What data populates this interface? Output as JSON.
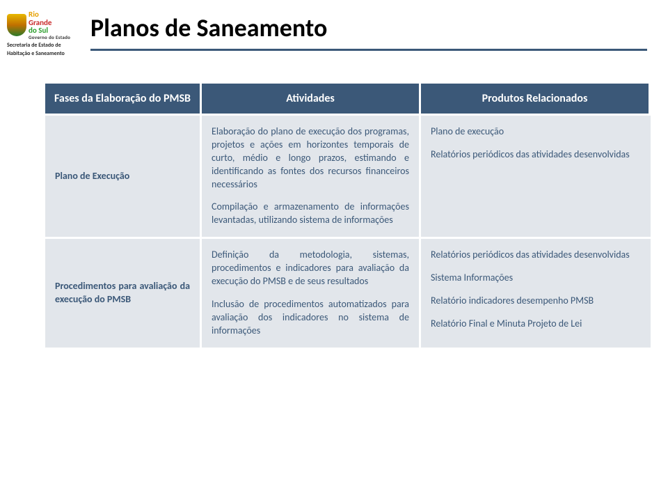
{
  "logo": {
    "line1": "Rio",
    "line2": "Grande",
    "line3": "do Sul",
    "gov": "Governo do Estado",
    "sub1": "Secretaria de Estado de",
    "sub2": "Habitação e Saneamento"
  },
  "title": "Planos de Saneamento",
  "headers": {
    "c1": "Fases da Elaboração do PMSB",
    "c2": "Atividades",
    "c3": "Produtos Relacionados"
  },
  "row1": {
    "c1": "Plano de Execução",
    "c2a": "Elaboração do plano de execução dos programas, projetos e ações em horizontes temporais de curto, médio e longo prazos, estimando e identificando as fontes dos recursos financeiros necessários",
    "c2b": "Compilação e armazenamento de informações levantadas, utilizando sistema de informações",
    "c3a": "Plano de execução",
    "c3b": "Relatórios periódicos das atividades desenvolvidas"
  },
  "row2": {
    "c1": "Procedimentos para avaliação da execução do PMSB",
    "c2a": "Definição da metodologia, sistemas, procedimentos e indicadores para avaliação da execução do PMSB e de seus resultados",
    "c2b": "Inclusão de procedimentos automatizados para avaliação dos indicadores no sistema de informações",
    "c3a": "Relatórios periódicos das atividades desenvolvidas",
    "c3b": "Sistema Informações",
    "c3c": "Relatório indicadores desempenho PMSB",
    "c3d": "Relatório Final  e Minuta Projeto de Lei"
  }
}
